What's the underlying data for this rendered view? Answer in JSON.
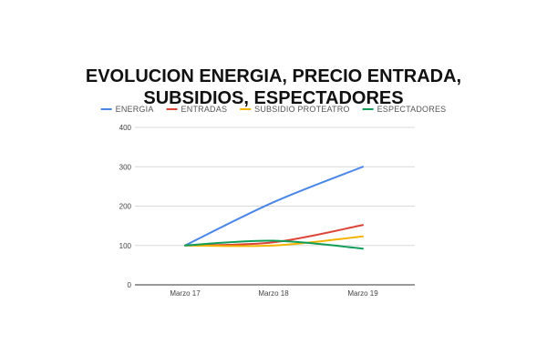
{
  "chart_data": {
    "type": "line",
    "title_lines": [
      "EVOLUCION ENERGIA, PRECIO ENTRADA,",
      "SUBSIDIOS, ESPECTADORES"
    ],
    "categories": [
      "Marzo 17",
      "Marzo 18",
      "Marzo 19"
    ],
    "series": [
      {
        "name": "ENERGIA",
        "color": "#4a86e8",
        "values": [
          100,
          210,
          300
        ]
      },
      {
        "name": "ENTRADAS",
        "color": "#db4437",
        "values": [
          100,
          108,
          152
        ]
      },
      {
        "name": "SUBSIDIO PROTEATRO",
        "color": "#f4b400",
        "values": [
          100,
          100,
          123
        ]
      },
      {
        "name": "ESPECTADORES",
        "color": "#0f9d58",
        "values": [
          100,
          112,
          92
        ]
      }
    ],
    "ylim": [
      0,
      400
    ],
    "yticks": [
      0,
      100,
      200,
      300,
      400
    ],
    "grid": true,
    "legend_position": "top",
    "smooth": true
  }
}
